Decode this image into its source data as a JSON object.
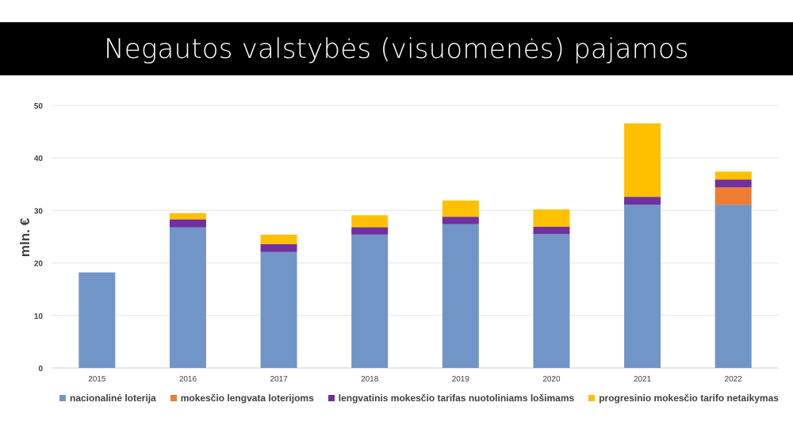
{
  "title": "Negautos valstybės (visuomenės) pajamos",
  "chart_data": {
    "type": "bar",
    "stacked": true,
    "title": "Negautos valstybės (visuomenės) pajamos",
    "xlabel": "",
    "ylabel": "mln. €",
    "ylim": [
      0,
      50
    ],
    "yticks": [
      0,
      10,
      20,
      30,
      40,
      50
    ],
    "grid": true,
    "legend_position": "bottom",
    "categories": [
      "2015",
      "2016",
      "2017",
      "2018",
      "2019",
      "2020",
      "2021",
      "2022"
    ],
    "series": [
      {
        "name": "nacionalinė loterija",
        "color": "#7295C7",
        "values": [
          18.2,
          26.8,
          22.1,
          25.4,
          27.4,
          25.5,
          31.1,
          31.1
        ]
      },
      {
        "name": "mokesčio lengvata loterijoms",
        "color": "#ED7D31",
        "values": [
          0,
          0,
          0,
          0,
          0,
          0,
          0,
          3.3
        ]
      },
      {
        "name": "lengvatinis mokesčio tarifas nuotoliniams lošimams",
        "color": "#7030A0",
        "values": [
          0,
          1.5,
          1.5,
          1.4,
          1.4,
          1.4,
          1.5,
          1.5
        ]
      },
      {
        "name": "progresinio mokesčio tarifo netaikymas",
        "color": "#FFC000",
        "values": [
          0,
          1.2,
          1.8,
          2.3,
          3.1,
          3.3,
          14.0,
          1.5
        ]
      }
    ]
  }
}
